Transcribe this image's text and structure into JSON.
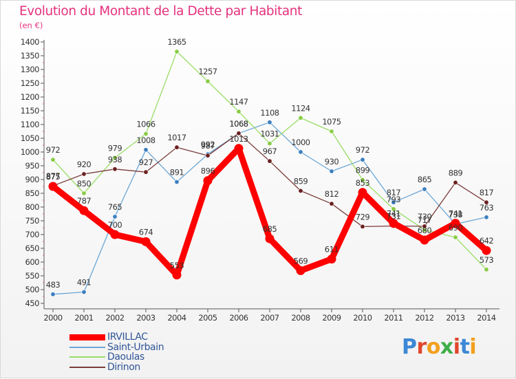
{
  "chart_data": {
    "type": "line",
    "title": "Evolution du Montant de la Dette par Habitant",
    "unit": "(en €)",
    "x": [
      "2000",
      "2001",
      "2002",
      "2003",
      "2004",
      "2005",
      "2006",
      "2007",
      "2008",
      "2009",
      "2010",
      "2011",
      "2012",
      "2013",
      "2014"
    ],
    "ylim": [
      450,
      1400
    ],
    "yticks": [
      450,
      500,
      550,
      600,
      650,
      700,
      750,
      800,
      850,
      900,
      950,
      1000,
      1050,
      1100,
      1150,
      1200,
      1250,
      1300,
      1350,
      1400
    ],
    "grid": false,
    "legend_position": "bottom-left",
    "series": [
      {
        "name": "IRVILLAC",
        "color": "#ff0000",
        "marker": "#ff0000",
        "values": [
          875,
          787,
          700,
          674,
          553,
          896,
          1013,
          685,
          569,
          611,
          853,
          741,
          680,
          741,
          642
        ]
      },
      {
        "name": "Saint-Urbain",
        "color": "#6aa6d6",
        "marker": "#3c7fc0",
        "values": [
          483,
          491,
          765,
          1008,
          891,
          992,
          1068,
          1108,
          1000,
          930,
          972,
          817,
          865,
          738,
          763
        ]
      },
      {
        "name": "Daoulas",
        "color": "#99dd66",
        "marker": "#88cc44",
        "values": [
          972,
          850,
          979,
          1066,
          1365,
          1257,
          1147,
          1031,
          1124,
          1075,
          899,
          793,
          717,
          690,
          573
        ]
      },
      {
        "name": "Dirinon",
        "color": "#7a3a3a",
        "marker": "#6b1f1f",
        "values": [
          877,
          920,
          938,
          927,
          1017,
          987,
          1068,
          967,
          859,
          812,
          729,
          731,
          730,
          889,
          817
        ]
      }
    ]
  },
  "brand": {
    "text": "Proxiti",
    "letters": [
      {
        "ch": "P",
        "color": "#3d88d6"
      },
      {
        "ch": "r",
        "color": "#e0462d"
      },
      {
        "ch": "o",
        "color": "#f2a01d"
      },
      {
        "ch": "x",
        "color": "#3fae49"
      },
      {
        "ch": "i",
        "color": "#e0462d"
      },
      {
        "ch": "t",
        "color": "#3d88d6"
      },
      {
        "ch": "i",
        "color": "#f2a01d"
      }
    ]
  }
}
